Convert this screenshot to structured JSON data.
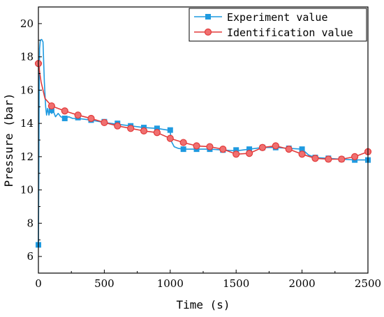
{
  "chart_data": {
    "type": "line",
    "title": "",
    "xlabel": "Time (s)",
    "ylabel": "Pressure (bar)",
    "xlim": [
      0,
      2500
    ],
    "ylim": [
      5,
      21
    ],
    "xticks": [
      0,
      500,
      1000,
      1500,
      2000,
      2500
    ],
    "yticks": [
      6,
      8,
      10,
      12,
      14,
      16,
      18,
      20
    ],
    "grid": false,
    "legend_position": "top-right",
    "series": [
      {
        "name": "Experiment value",
        "color": "#1f9ae0",
        "marker": "square",
        "line": [
          [
            0,
            6.7
          ],
          [
            3,
            11
          ],
          [
            6,
            16
          ],
          [
            9,
            18.5
          ],
          [
            15,
            19
          ],
          [
            25,
            19.05
          ],
          [
            35,
            18.9
          ],
          [
            45,
            16.5
          ],
          [
            55,
            15
          ],
          [
            62,
            14.5
          ],
          [
            70,
            14.9
          ],
          [
            80,
            14.5
          ],
          [
            90,
            14.8
          ],
          [
            100,
            14.6
          ],
          [
            115,
            14.7
          ],
          [
            130,
            14.4
          ],
          [
            150,
            14.6
          ],
          [
            170,
            14.4
          ],
          [
            200,
            14.3
          ],
          [
            230,
            14.4
          ],
          [
            260,
            14.3
          ],
          [
            300,
            14.3
          ],
          [
            350,
            14.25
          ],
          [
            400,
            14.2
          ],
          [
            500,
            14.05
          ],
          [
            600,
            13.95
          ],
          [
            700,
            13.85
          ],
          [
            800,
            13.75
          ],
          [
            900,
            13.7
          ],
          [
            980,
            13.6
          ],
          [
            1000,
            13.5
          ],
          [
            1010,
            12.9
          ],
          [
            1030,
            12.6
          ],
          [
            1060,
            12.5
          ],
          [
            1100,
            12.45
          ],
          [
            1200,
            12.45
          ],
          [
            1300,
            12.45
          ],
          [
            1400,
            12.4
          ],
          [
            1500,
            12.35
          ],
          [
            1550,
            12.4
          ],
          [
            1600,
            12.45
          ],
          [
            1650,
            12.5
          ],
          [
            1700,
            12.55
          ],
          [
            1800,
            12.55
          ],
          [
            1900,
            12.5
          ],
          [
            2000,
            12.45
          ],
          [
            2050,
            12.1
          ],
          [
            2100,
            11.95
          ],
          [
            2200,
            11.9
          ],
          [
            2300,
            11.85
          ],
          [
            2400,
            11.8
          ],
          [
            2500,
            11.8
          ]
        ],
        "markers": [
          [
            0,
            6.7
          ],
          [
            100,
            14.8
          ],
          [
            200,
            14.3
          ],
          [
            300,
            14.35
          ],
          [
            400,
            14.2
          ],
          [
            500,
            14.1
          ],
          [
            600,
            14.0
          ],
          [
            700,
            13.85
          ],
          [
            800,
            13.75
          ],
          [
            900,
            13.7
          ],
          [
            1000,
            13.6
          ],
          [
            1100,
            12.45
          ],
          [
            1200,
            12.45
          ],
          [
            1300,
            12.45
          ],
          [
            1400,
            12.4
          ],
          [
            1500,
            12.4
          ],
          [
            1600,
            12.45
          ],
          [
            1700,
            12.55
          ],
          [
            1800,
            12.55
          ],
          [
            1900,
            12.5
          ],
          [
            2000,
            12.45
          ],
          [
            2100,
            11.95
          ],
          [
            2200,
            11.9
          ],
          [
            2300,
            11.85
          ],
          [
            2400,
            11.8
          ],
          [
            2500,
            11.8
          ]
        ]
      },
      {
        "name": "Identification value",
        "color": "#e23a3a",
        "marker": "circle",
        "line": [
          [
            0,
            17.6
          ],
          [
            20,
            16.5
          ],
          [
            50,
            15.5
          ],
          [
            100,
            15.05
          ],
          [
            200,
            14.75
          ],
          [
            300,
            14.5
          ],
          [
            400,
            14.3
          ],
          [
            500,
            14.05
          ],
          [
            600,
            13.85
          ],
          [
            700,
            13.7
          ],
          [
            800,
            13.55
          ],
          [
            900,
            13.45
          ],
          [
            1000,
            13.1
          ],
          [
            1100,
            12.85
          ],
          [
            1200,
            12.65
          ],
          [
            1300,
            12.6
          ],
          [
            1400,
            12.45
          ],
          [
            1500,
            12.15
          ],
          [
            1600,
            12.2
          ],
          [
            1700,
            12.55
          ],
          [
            1800,
            12.65
          ],
          [
            1900,
            12.45
          ],
          [
            2000,
            12.15
          ],
          [
            2100,
            11.9
          ],
          [
            2200,
            11.85
          ],
          [
            2300,
            11.85
          ],
          [
            2400,
            12.0
          ],
          [
            2500,
            12.3
          ]
        ],
        "markers": [
          [
            0,
            17.6
          ],
          [
            100,
            15.05
          ],
          [
            200,
            14.75
          ],
          [
            300,
            14.5
          ],
          [
            400,
            14.3
          ],
          [
            500,
            14.05
          ],
          [
            600,
            13.85
          ],
          [
            700,
            13.7
          ],
          [
            800,
            13.55
          ],
          [
            900,
            13.45
          ],
          [
            1000,
            13.1
          ],
          [
            1100,
            12.85
          ],
          [
            1200,
            12.65
          ],
          [
            1300,
            12.6
          ],
          [
            1400,
            12.45
          ],
          [
            1500,
            12.15
          ],
          [
            1600,
            12.2
          ],
          [
            1700,
            12.55
          ],
          [
            1800,
            12.65
          ],
          [
            1900,
            12.45
          ],
          [
            2000,
            12.15
          ],
          [
            2100,
            11.9
          ],
          [
            2200,
            11.85
          ],
          [
            2300,
            11.85
          ],
          [
            2400,
            12.0
          ],
          [
            2500,
            12.3
          ]
        ]
      }
    ]
  }
}
